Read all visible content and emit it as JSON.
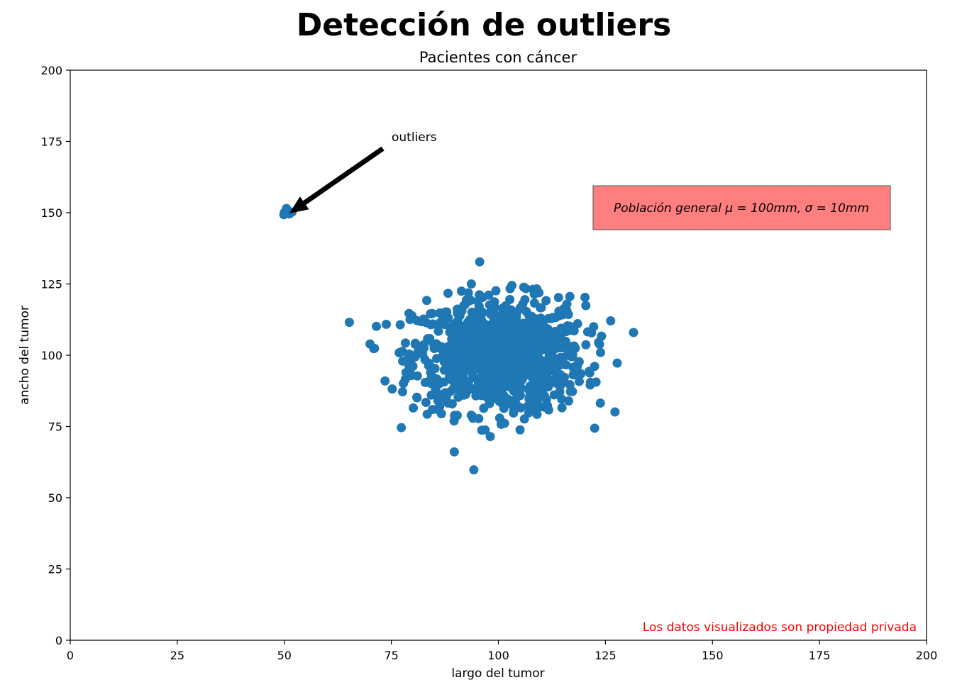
{
  "chart_data": {
    "type": "scatter",
    "title": "Detección de outliers",
    "subtitle": "Pacientes con cáncer",
    "xlabel": "largo del tumor",
    "ylabel": "ancho del tumor",
    "xlim": [
      0,
      200
    ],
    "ylim": [
      0,
      200
    ],
    "xticks": [
      "0",
      "25",
      "50",
      "75",
      "100",
      "125",
      "150",
      "175",
      "200"
    ],
    "yticks": [
      "0",
      "25",
      "50",
      "75",
      "100",
      "125",
      "150",
      "175",
      "200"
    ],
    "grid": false,
    "marker_color": "#1f77b4",
    "cluster": {
      "description_hidden": true,
      "mean": [
        100,
        100
      ],
      "std": [
        10,
        10
      ],
      "count": 1000
    },
    "outliers": [
      {
        "x": 50.0,
        "y": 150.0
      },
      {
        "x": 50.5,
        "y": 151.5
      },
      {
        "x": 51.2,
        "y": 149.6
      },
      {
        "x": 50.8,
        "y": 150.8
      },
      {
        "x": 51.8,
        "y": 150.2
      },
      {
        "x": 49.9,
        "y": 149.3
      }
    ],
    "annotation": {
      "text": "outliers",
      "xy": [
        51,
        151
      ],
      "xytext": [
        75,
        175
      ]
    },
    "info_box": {
      "text": "Población general μ = 100mm, σ = 10mm",
      "color": "#ff7f7f"
    },
    "watermark": {
      "text": "Los datos visualizados son propiedad privada",
      "color": "#ff0000"
    }
  }
}
